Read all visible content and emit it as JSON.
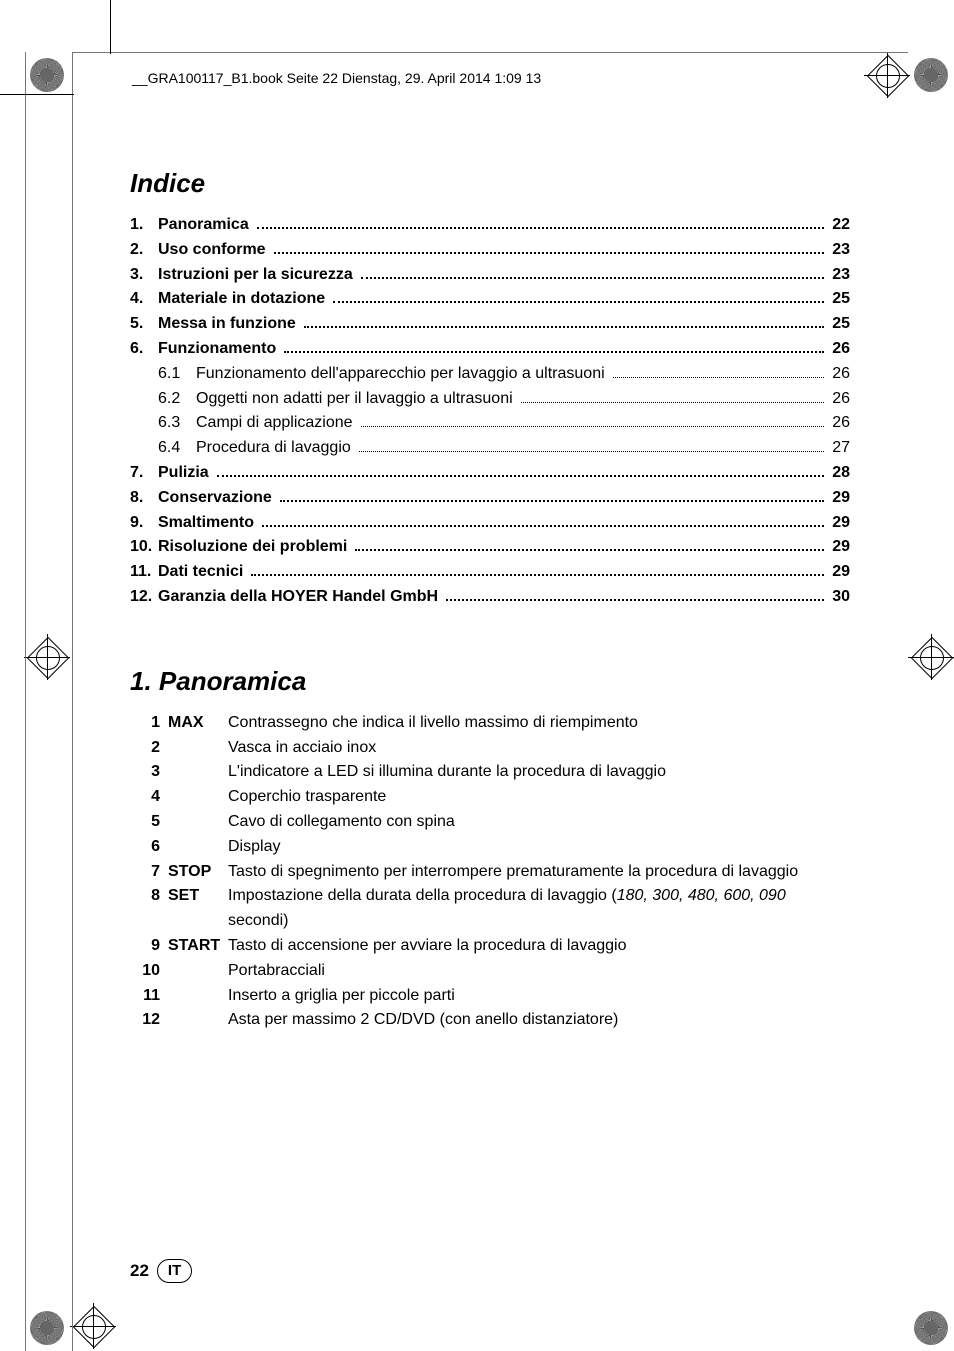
{
  "header": {
    "running_head": "__GRA100117_B1.book  Seite 22  Dienstag, 29. April 2014  1:09 13"
  },
  "titles": {
    "toc_title": "Indice",
    "section1_title": "1.  Panoramica"
  },
  "toc": [
    {
      "num": "1.",
      "text": "Panoramica",
      "page": "22",
      "bold": true
    },
    {
      "num": "2.",
      "text": "Uso conforme",
      "page": "23",
      "bold": true
    },
    {
      "num": "3.",
      "text": "Istruzioni per la sicurezza",
      "page": "23",
      "bold": true
    },
    {
      "num": "4.",
      "text": "Materiale in dotazione",
      "page": "25",
      "bold": true
    },
    {
      "num": "5.",
      "text": "Messa in funzione",
      "page": "25",
      "bold": true
    },
    {
      "num": "6.",
      "text": "Funzionamento",
      "page": "26",
      "bold": true
    },
    {
      "num": "",
      "sub": "6.1",
      "text": "Funzionamento dell'apparecchio per lavaggio a ultrasuoni",
      "page": "26",
      "bold": false
    },
    {
      "num": "",
      "sub": "6.2",
      "text": "Oggetti non adatti per il lavaggio a ultrasuoni",
      "page": "26",
      "bold": false
    },
    {
      "num": "",
      "sub": "6.3",
      "text": "Campi di applicazione",
      "page": "26",
      "bold": false
    },
    {
      "num": "",
      "sub": "6.4",
      "text": "Procedura di lavaggio",
      "page": "27",
      "bold": false
    },
    {
      "num": "7.",
      "text": "Pulizia",
      "page": "28",
      "bold": true
    },
    {
      "num": "8.",
      "text": "Conservazione",
      "page": "29",
      "bold": true
    },
    {
      "num": "9.",
      "text": "Smaltimento",
      "page": "29",
      "bold": true
    },
    {
      "num": "10.",
      "text": "Risoluzione dei problemi",
      "page": "29",
      "bold": true
    },
    {
      "num": "11.",
      "text": "Dati tecnici",
      "page": "29",
      "bold": true
    },
    {
      "num": "12.",
      "text": "Garanzia della HOYER Handel GmbH",
      "page": "30",
      "bold": true
    }
  ],
  "panoramica": [
    {
      "n": "1",
      "key": "MAX",
      "desc": "Contrassegno che indica il livello massimo di riempimento"
    },
    {
      "n": "2",
      "key": "",
      "desc": "Vasca in acciaio inox"
    },
    {
      "n": "3",
      "key": "",
      "desc": "L'indicatore a LED si illumina durante la procedura di lavaggio"
    },
    {
      "n": "4",
      "key": "",
      "desc": "Coperchio trasparente"
    },
    {
      "n": "5",
      "key": "",
      "desc": "Cavo di collegamento con spina"
    },
    {
      "n": "6",
      "key": "",
      "desc": "Display"
    },
    {
      "n": "7",
      "key": "STOP",
      "desc": "Tasto di spegnimento per interrompere prematuramente la procedura di lavaggio"
    },
    {
      "n": "8",
      "key": "SET",
      "desc_pre": "Impostazione della durata della procedura di lavaggio (",
      "desc_ital": "180, 300, 480, 600, 090",
      "desc_post": " secondi)"
    },
    {
      "n": "9",
      "key": "START",
      "desc": "Tasto di accensione per avviare la procedura di lavaggio"
    },
    {
      "n": "10",
      "key": "",
      "desc": "Portabracciali"
    },
    {
      "n": "11",
      "key": "",
      "desc": "Inserto a griglia per piccole parti"
    },
    {
      "n": "12",
      "key": "",
      "desc": "Asta per massimo 2 CD/DVD (con anello distanziatore)"
    }
  ],
  "footer": {
    "page_number": "22",
    "lang_code": "IT"
  },
  "style": {
    "page_bg": "#ffffff",
    "text_color": "#000000",
    "title_fontsize": 26,
    "body_fontsize": 16,
    "header_fontsize": 14,
    "footer_fontsize": 17,
    "line_color": "#777777"
  }
}
